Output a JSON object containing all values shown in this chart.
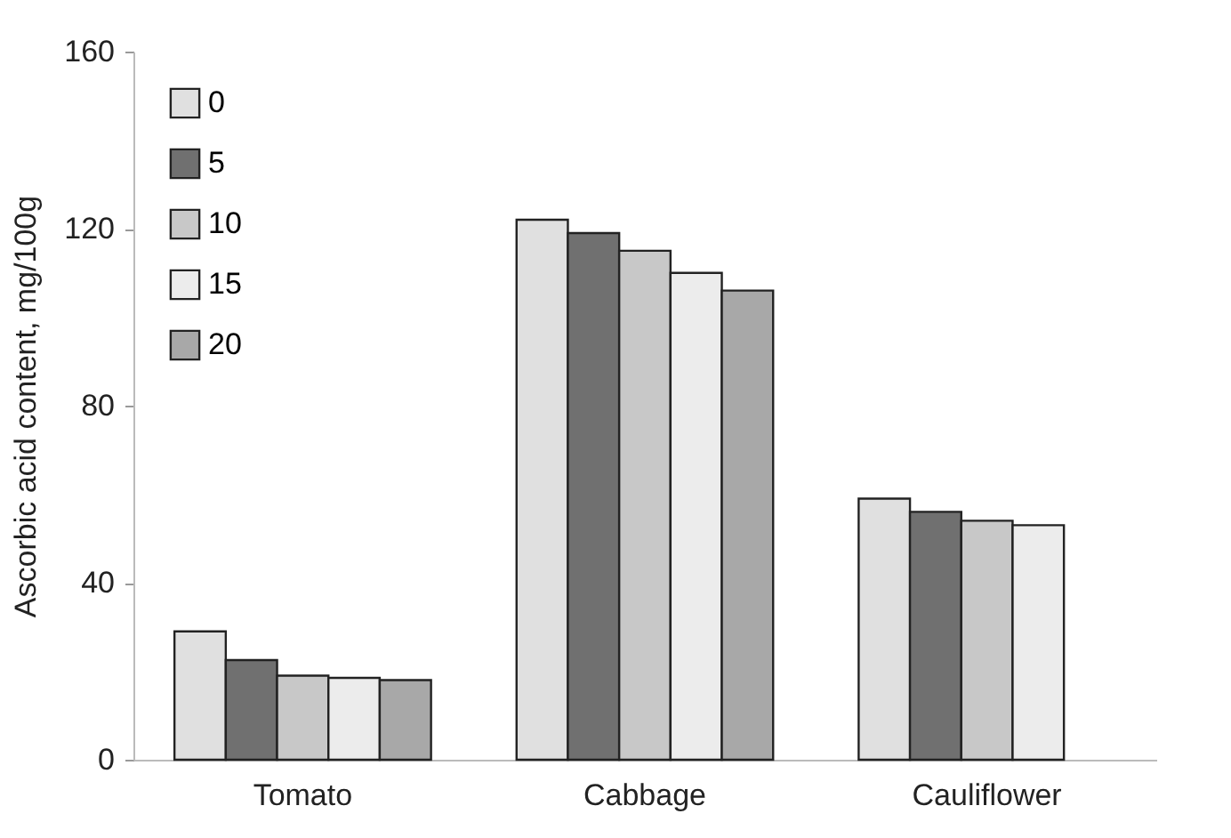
{
  "chart_data": {
    "type": "bar",
    "ylabel": "Ascorbic acid content, mg/100g",
    "categories": [
      "Tomato",
      "Cabbage",
      "Cauliflower"
    ],
    "series": [
      {
        "name": "0",
        "color": "#e0e0e0",
        "values": [
          29,
          122,
          59
        ]
      },
      {
        "name": "5",
        "color": "#707070",
        "values": [
          22.5,
          119,
          56
        ]
      },
      {
        "name": "10",
        "color": "#c8c8c8",
        "values": [
          19,
          115,
          54
        ]
      },
      {
        "name": "15",
        "color": "#ececec",
        "values": [
          18.5,
          110,
          53
        ]
      },
      {
        "name": "20",
        "color": "#a8a8a8",
        "values": [
          18,
          106,
          null
        ]
      }
    ],
    "ylim": [
      0,
      160
    ],
    "yticks": [
      0,
      40,
      80,
      120,
      160
    ],
    "grid": false,
    "legend": "top left"
  }
}
